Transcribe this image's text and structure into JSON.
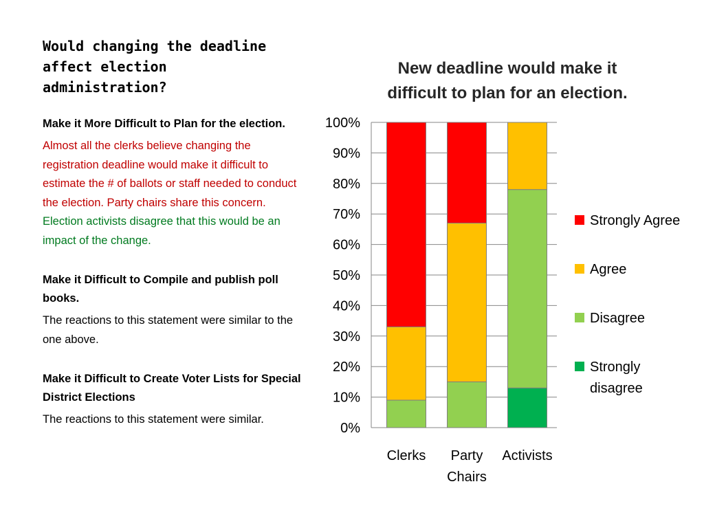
{
  "slide": {
    "title": "Would changing the deadline affect election administration?"
  },
  "sections": [
    {
      "heading": "Make it More Difficult to Plan for the election.",
      "body_red": "Almost all the clerks believe changing the registration deadline would make it difficult to estimate the # of ballots or staff needed to conduct the election. Party chairs share this concern.",
      "body_green": "Election activists disagree that this would be an impact of the change."
    },
    {
      "heading": "Make it Difficult to Compile and publish poll books.",
      "body": "The reactions to this statement were similar to the one above."
    },
    {
      "heading": "Make it Difficult to Create Voter Lists for Special District Elections",
      "body": "The reactions to this statement were similar."
    }
  ],
  "chart_data": {
    "type": "bar",
    "stacked": true,
    "title": "New deadline would make it difficult to plan for an election.",
    "title_lines": [
      "New deadline would make it",
      "difficult to plan for an election."
    ],
    "categories": [
      "Clerks",
      "Party Chairs",
      "Activists"
    ],
    "category_lines": [
      [
        "Clerks"
      ],
      [
        "Party",
        "Chairs"
      ],
      [
        "Activists"
      ]
    ],
    "series": [
      {
        "name": "Strongly disagree",
        "legend_lines": [
          "Strongly",
          "disagree"
        ],
        "color": "#00b050",
        "values": [
          0,
          0,
          13
        ]
      },
      {
        "name": "Disagree",
        "legend_lines": [
          "Disagree"
        ],
        "color": "#92d050",
        "values": [
          9,
          15,
          65
        ]
      },
      {
        "name": "Agree",
        "legend_lines": [
          "Agree"
        ],
        "color": "#ffc000",
        "values": [
          24,
          52,
          22
        ]
      },
      {
        "name": "Strongly Agree",
        "legend_lines": [
          "Strongly Agree"
        ],
        "color": "#ff0000",
        "values": [
          67,
          33,
          0
        ]
      }
    ],
    "ylim": [
      0,
      100
    ],
    "yticks": [
      "0%",
      "10%",
      "20%",
      "30%",
      "40%",
      "50%",
      "60%",
      "70%",
      "80%",
      "90%",
      "100%"
    ],
    "grid": true,
    "legend_position": "right"
  }
}
